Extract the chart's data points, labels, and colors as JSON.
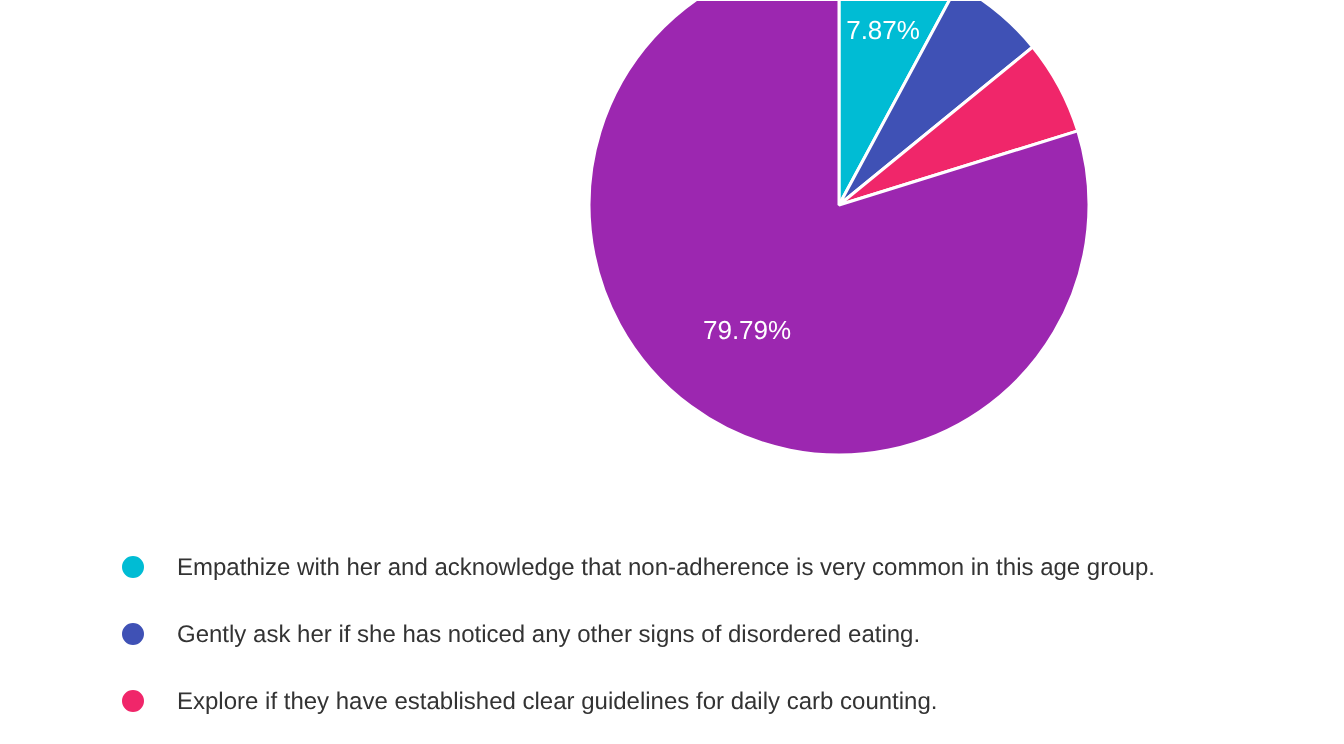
{
  "chart_data": {
    "type": "pie",
    "categories": [
      "Empathize with her and acknowledge that non-adherence is very common in this age group.",
      "Gently ask her if she has noticed any other signs of disordered eating.",
      "Explore if they have established clear guidelines for daily carb counting.",
      null
    ],
    "values": [
      7.87,
      6.24,
      6.1,
      79.79
    ],
    "colors": [
      "#00bcd4",
      "#3f51b5",
      "#f0266a",
      "#9c27b0"
    ],
    "value_labels": [
      "7.87%",
      null,
      null,
      "79.79%"
    ],
    "legend": "bottom"
  }
}
